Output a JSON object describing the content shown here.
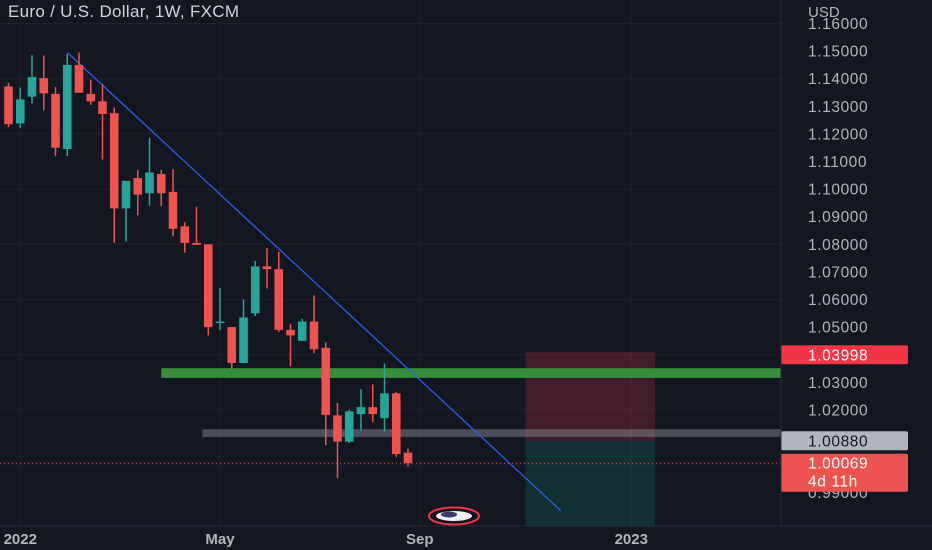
{
  "header": {
    "title": "Euro / U.S. Dollar, 1W, FXCM"
  },
  "chart_data": {
    "type": "candlestick",
    "currency": "USD",
    "ylim": [
      0.98,
      1.163
    ],
    "y_ticks": [
      "1.16000",
      "1.15000",
      "1.14000",
      "1.13000",
      "1.12000",
      "1.11000",
      "1.10000",
      "1.09000",
      "1.08000",
      "1.07000",
      "1.06000",
      "1.05000",
      "1.04000",
      "1.03000",
      "1.02000",
      "1.01000",
      "1.00000",
      "0.99000"
    ],
    "x_ticks": [
      {
        "label": "2022",
        "week": 1
      },
      {
        "label": "May",
        "week": 18
      },
      {
        "label": "Sep",
        "week": 35
      },
      {
        "label": "2023",
        "week": 53
      }
    ],
    "grid": true,
    "colors": {
      "up": "#26a69a",
      "down": "#ef5350",
      "background": "#131722",
      "trendline": "#2962ff",
      "support": "#388e3c"
    },
    "candles": [
      {
        "o": 1.1372,
        "h": 1.1385,
        "l": 1.1225,
        "c": 1.1235
      },
      {
        "o": 1.1238,
        "h": 1.1368,
        "l": 1.1222,
        "c": 1.1325
      },
      {
        "o": 1.1335,
        "h": 1.1485,
        "l": 1.131,
        "c": 1.1406
      },
      {
        "o": 1.1402,
        "h": 1.1484,
        "l": 1.1285,
        "c": 1.1347
      },
      {
        "o": 1.1345,
        "h": 1.137,
        "l": 1.112,
        "c": 1.115
      },
      {
        "o": 1.1145,
        "h": 1.149,
        "l": 1.112,
        "c": 1.145
      },
      {
        "o": 1.145,
        "h": 1.1495,
        "l": 1.1365,
        "c": 1.1349
      },
      {
        "o": 1.1345,
        "h": 1.1396,
        "l": 1.1305,
        "c": 1.1318
      },
      {
        "o": 1.1318,
        "h": 1.138,
        "l": 1.1107,
        "c": 1.1272
      },
      {
        "o": 1.1275,
        "h": 1.1295,
        "l": 1.0805,
        "c": 1.093
      },
      {
        "o": 1.093,
        "h": 1.1015,
        "l": 1.081,
        "c": 1.103
      },
      {
        "o": 1.104,
        "h": 1.107,
        "l": 1.0905,
        "c": 1.098
      },
      {
        "o": 1.0985,
        "h": 1.1185,
        "l": 1.094,
        "c": 1.106
      },
      {
        "o": 1.1055,
        "h": 1.107,
        "l": 1.0938,
        "c": 1.0985
      },
      {
        "o": 1.099,
        "h": 1.1072,
        "l": 1.0829,
        "c": 1.0856
      },
      {
        "o": 1.0865,
        "h": 1.088,
        "l": 1.077,
        "c": 1.0805
      },
      {
        "o": 1.0805,
        "h": 1.0936,
        "l": 1.0805,
        "c": 1.0798
      },
      {
        "o": 1.08,
        "h": 1.08,
        "l": 1.047,
        "c": 1.05
      },
      {
        "o": 1.052,
        "h": 1.0642,
        "l": 1.049,
        "c": 1.052
      },
      {
        "o": 1.05,
        "h": 1.05,
        "l": 1.0349,
        "c": 1.037
      },
      {
        "o": 1.037,
        "h": 1.06,
        "l": 1.037,
        "c": 1.0535
      },
      {
        "o": 1.055,
        "h": 1.074,
        "l": 1.054,
        "c": 1.072
      },
      {
        "o": 1.072,
        "h": 1.0786,
        "l": 1.064,
        "c": 1.071
      },
      {
        "o": 1.071,
        "h": 1.0773,
        "l": 1.0483,
        "c": 1.049
      },
      {
        "o": 1.049,
        "h": 1.0512,
        "l": 1.0359,
        "c": 1.047
      },
      {
        "o": 1.045,
        "h": 1.053,
        "l": 1.046,
        "c": 1.052
      },
      {
        "o": 1.052,
        "h": 1.0615,
        "l": 1.0405,
        "c": 1.042
      },
      {
        "o": 1.0425,
        "h": 1.0445,
        "l": 1.0072,
        "c": 1.0182
      },
      {
        "o": 1.018,
        "h": 1.0225,
        "l": 0.9952,
        "c": 1.0085
      },
      {
        "o": 1.0085,
        "h": 1.02,
        "l": 1.008,
        "c": 1.0195
      },
      {
        "o": 1.0185,
        "h": 1.0275,
        "l": 1.0125,
        "c": 1.021
      },
      {
        "o": 1.021,
        "h": 1.0292,
        "l": 1.0155,
        "c": 1.0185
      },
      {
        "o": 1.017,
        "h": 1.0368,
        "l": 1.0122,
        "c": 1.026
      },
      {
        "o": 1.026,
        "h": 1.0265,
        "l": 1.003,
        "c": 1.004
      },
      {
        "o": 1.0045,
        "h": 1.006,
        "l": 0.9995,
        "c": 1.0007
      }
    ],
    "drawings": {
      "trendline": [
        {
          "week": 5,
          "price": 1.1495
        },
        {
          "week": 47,
          "price": 0.9835
        }
      ],
      "support_zone": {
        "from_week": 13,
        "price_high": 1.0351,
        "price_low": 1.0316
      },
      "entry_line": {
        "from_week": 16.5,
        "price_high": 1.013,
        "price_low": 1.0102
      },
      "position_box": {
        "from_week": 44,
        "to_week": 55,
        "stop": 1.041,
        "entry": 1.0088,
        "target": 0.975
      }
    },
    "price_labels": [
      {
        "text": "1.03998",
        "price": 1.03998,
        "color": "#f23645",
        "text_color": "#ffffff"
      },
      {
        "text": "1.00880",
        "price": 1.0088,
        "color": "#b2b5be",
        "text_color": "#131722"
      },
      {
        "text": "1.00069",
        "sub": "4d 11h",
        "price": 1.00069,
        "color": "#ef5350",
        "text_color": "#ffffff"
      }
    ],
    "last_price": 1.00069,
    "flag": "us-flag-icon"
  }
}
